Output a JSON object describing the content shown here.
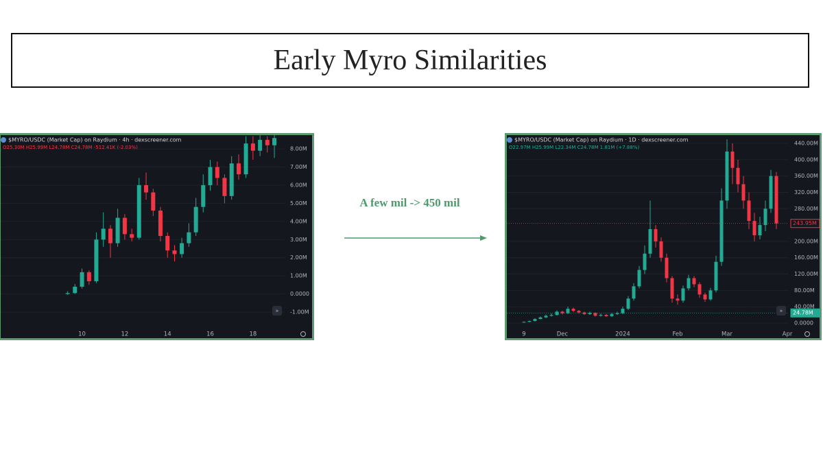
{
  "title": "Early Myro Similarities",
  "annotation": "A few mil -> 450 mil",
  "chart_data": [
    {
      "type": "candlestick",
      "title": "$MYRO/USDC (Market Cap) on Raydium · 4h · dexscreener.com",
      "subtitle": "O25.30M H25.99M L24.78M C24.78M -512.41K (-2.03%)",
      "subtitle_color": "#f23645",
      "up_color": "#22ab94",
      "down_color": "#f23645",
      "x": [
        9.33,
        9.67,
        10,
        10.33,
        10.67,
        11,
        11.33,
        11.67,
        12,
        12.33,
        12.67,
        13,
        13.33,
        13.67,
        14,
        14.33,
        14.67,
        15,
        15.33,
        15.67,
        16,
        16.33,
        16.67,
        17,
        17.33,
        17.67,
        18,
        18.33,
        18.67,
        19
      ],
      "open": [
        0,
        50000,
        400000,
        1200000,
        700000,
        3000000,
        3600000,
        2800000,
        4200000,
        3300000,
        3100000,
        6000000,
        5600000,
        4600000,
        3200000,
        2400000,
        2200000,
        2800000,
        3400000,
        4800000,
        6000000,
        7000000,
        6400000,
        5400000,
        7200000,
        6600000,
        8300000,
        7900000,
        8500000,
        8200000
      ],
      "high": [
        150000,
        550000,
        1400000,
        1300000,
        3400000,
        4500000,
        3800000,
        4700000,
        4400000,
        3600000,
        6400000,
        6700000,
        5800000,
        4800000,
        3400000,
        2700000,
        3100000,
        3900000,
        5300000,
        6600000,
        7400000,
        7300000,
        6600000,
        7600000,
        7700000,
        8700000,
        8700000,
        8800000,
        8700000,
        8800000
      ],
      "low": [
        -50000,
        0,
        300000,
        500000,
        600000,
        2600000,
        2000000,
        2600000,
        3000000,
        2900000,
        3000000,
        5200000,
        4300000,
        2900000,
        2000000,
        1800000,
        2000000,
        2600000,
        3200000,
        4500000,
        5700000,
        6000000,
        5000000,
        5200000,
        6300000,
        6400000,
        7400000,
        7600000,
        7800000,
        7500000
      ],
      "close": [
        50000,
        400000,
        1200000,
        700000,
        3000000,
        3600000,
        2800000,
        4200000,
        3300000,
        3100000,
        6000000,
        5600000,
        4600000,
        3200000,
        2400000,
        2200000,
        2800000,
        3400000,
        4800000,
        6000000,
        7000000,
        6400000,
        5400000,
        7200000,
        6600000,
        8300000,
        7900000,
        8500000,
        8200000,
        8600000
      ],
      "xlim": [
        6.1,
        19.48
      ],
      "xticks": [
        10,
        12,
        14,
        16,
        18
      ],
      "ylim": [
        -1870000,
        8760000
      ],
      "yticks": [
        {
          "value": 8000000,
          "label": "8.00M"
        },
        {
          "value": 7000000,
          "label": "7.00M"
        },
        {
          "value": 6000000,
          "label": "6.00M"
        },
        {
          "value": 5000000,
          "label": "5.00M"
        },
        {
          "value": 4000000,
          "label": "4.00M"
        },
        {
          "value": 3000000,
          "label": "3.00M"
        },
        {
          "value": 2000000,
          "label": "2.00M"
        },
        {
          "value": 1000000,
          "label": "1.00M"
        },
        {
          "value": 0,
          "label": "0.0000"
        },
        {
          "value": -1000000,
          "label": "-1.00M"
        }
      ],
      "grid": true
    },
    {
      "type": "candlestick",
      "title": "$MYRO/USDC (Market Cap) on Raydium · 1D · dexscreener.com",
      "subtitle": "O22.97M H25.99M L22.34M C24.78M 1.81M (+7.88%)",
      "subtitle_color": "#22ab94",
      "up_color": "#22ab94",
      "down_color": "#f23645",
      "categories": [
        "9",
        null,
        null,
        null,
        null,
        null,
        null,
        "Dec",
        null,
        null,
        null,
        null,
        null,
        null,
        null,
        null,
        null,
        null,
        "2024",
        null,
        null,
        null,
        null,
        null,
        null,
        null,
        null,
        null,
        "Feb",
        null,
        null,
        null,
        null,
        null,
        null,
        null,
        null,
        "Mar",
        null,
        null,
        null,
        null,
        null,
        null,
        null,
        null,
        null,
        null,
        "Apr"
      ],
      "open": [
        2000000,
        3000000,
        5000000,
        10000000,
        14000000,
        18000000,
        20000000,
        28000000,
        24000000,
        35000000,
        30000000,
        26000000,
        22000000,
        25000000,
        18000000,
        20000000,
        17000000,
        22000000,
        24000000,
        35000000,
        60000000,
        90000000,
        130000000,
        170000000,
        230000000,
        200000000,
        160000000,
        110000000,
        60000000,
        55000000,
        85000000,
        110000000,
        95000000,
        70000000,
        58000000,
        80000000,
        150000000,
        300000000,
        420000000,
        380000000,
        340000000,
        300000000,
        250000000,
        215000000,
        240000000,
        280000000,
        360000000,
        null,
        null
      ],
      "high": [
        4000000,
        6000000,
        12000000,
        16000000,
        21000000,
        24000000,
        31000000,
        30000000,
        40000000,
        38000000,
        32000000,
        28000000,
        28000000,
        26000000,
        23000000,
        22000000,
        25000000,
        28000000,
        40000000,
        66000000,
        98000000,
        140000000,
        190000000,
        300000000,
        240000000,
        210000000,
        170000000,
        115000000,
        70000000,
        92000000,
        118000000,
        115000000,
        100000000,
        75000000,
        86000000,
        165000000,
        330000000,
        450000000,
        440000000,
        400000000,
        360000000,
        320000000,
        270000000,
        260000000,
        300000000,
        375000000,
        370000000,
        null,
        null
      ],
      "low": [
        1000000,
        2000000,
        4000000,
        9000000,
        12000000,
        16000000,
        18000000,
        21000000,
        22000000,
        27000000,
        23000000,
        20000000,
        20000000,
        16000000,
        16000000,
        15000000,
        15000000,
        20000000,
        22000000,
        32000000,
        55000000,
        85000000,
        120000000,
        160000000,
        185000000,
        150000000,
        100000000,
        50000000,
        45000000,
        50000000,
        80000000,
        88000000,
        62000000,
        52000000,
        55000000,
        75000000,
        140000000,
        280000000,
        340000000,
        320000000,
        280000000,
        230000000,
        200000000,
        205000000,
        225000000,
        270000000,
        230000000,
        null,
        null
      ],
      "close": [
        3000000,
        5000000,
        10000000,
        14000000,
        18000000,
        20000000,
        28000000,
        24000000,
        35000000,
        30000000,
        26000000,
        22000000,
        25000000,
        18000000,
        20000000,
        17000000,
        22000000,
        24000000,
        35000000,
        60000000,
        90000000,
        130000000,
        170000000,
        230000000,
        200000000,
        160000000,
        110000000,
        60000000,
        55000000,
        85000000,
        110000000,
        95000000,
        70000000,
        58000000,
        80000000,
        150000000,
        300000000,
        420000000,
        380000000,
        340000000,
        300000000,
        250000000,
        215000000,
        240000000,
        280000000,
        360000000,
        243950000,
        null,
        null
      ],
      "ylim": [
        -11750000,
        460150000
      ],
      "yticks": [
        {
          "value": 440000000,
          "label": "440.00M"
        },
        {
          "value": 400000000,
          "label": "400.00M"
        },
        {
          "value": 360000000,
          "label": "360.00M"
        },
        {
          "value": 320000000,
          "label": "320.00M"
        },
        {
          "value": 280000000,
          "label": "280.00M"
        },
        {
          "value": 200000000,
          "label": "200.00M"
        },
        {
          "value": 160000000,
          "label": "160.00M"
        },
        {
          "value": 120000000,
          "label": "120.00M"
        },
        {
          "value": 80000000,
          "label": "80.00M"
        },
        {
          "value": 40000000,
          "label": "40.00M"
        },
        {
          "value": 0,
          "label": "0.0000"
        }
      ],
      "price_labels": [
        {
          "value": 243950000,
          "label": "243.95M",
          "color": "#f23645"
        },
        {
          "value": 24780000,
          "label": "24.78M",
          "color": "#22ab94"
        }
      ],
      "grid": true
    }
  ]
}
